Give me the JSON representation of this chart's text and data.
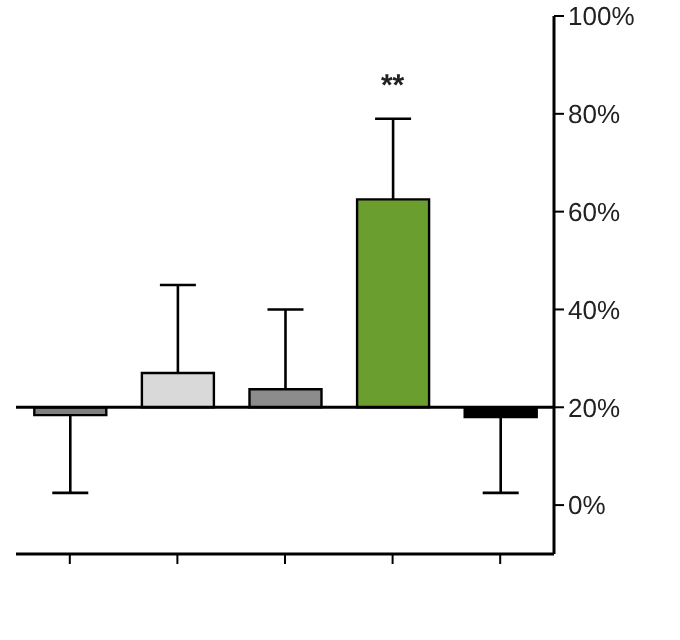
{
  "chart_data": {
    "type": "bar",
    "categories": [
      null,
      null,
      null,
      null,
      null
    ],
    "base": [
      20,
      20,
      20,
      20,
      20
    ],
    "values": [
      -1.6,
      7,
      3.7,
      42.5,
      -2
    ],
    "colors": [
      "#7f7f7f",
      "#d9d9d9",
      "#8c8c8c",
      "#6a9e2e",
      "#000000"
    ],
    "errors": [
      [
        2.5,
        18.4
      ],
      [
        27,
        45
      ],
      [
        23.7,
        40
      ],
      [
        62.5,
        79
      ],
      [
        2.5,
        18
      ]
    ],
    "ylim": [
      -10,
      100
    ],
    "yticks": [
      {
        "value": 0,
        "label": "0%"
      },
      {
        "value": 20,
        "label": "20%"
      },
      {
        "value": 40,
        "label": "40%"
      },
      {
        "value": 60,
        "label": "60%"
      },
      {
        "value": 80,
        "label": "80%"
      },
      {
        "value": 100,
        "label": "100%"
      }
    ],
    "ref_lines": [
      {
        "axis": "y",
        "value": 20,
        "color": "#000000"
      }
    ],
    "annotations": [
      "**"
    ],
    "grid": false,
    "legend": false
  }
}
